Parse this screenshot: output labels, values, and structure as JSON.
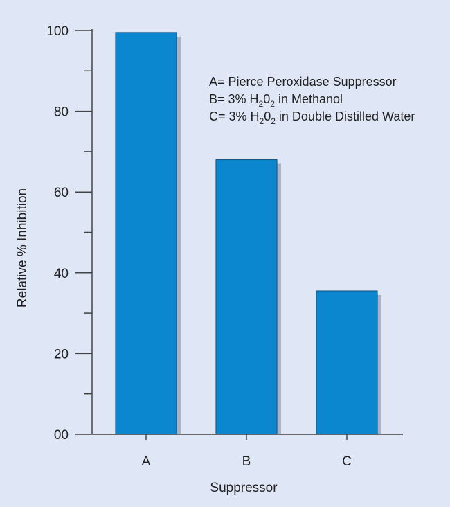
{
  "chart_data": {
    "type": "bar",
    "title": "",
    "xlabel": "Suppressor",
    "ylabel": "Relative % Inhibition",
    "categories": [
      "A",
      "B",
      "C"
    ],
    "values": [
      99.5,
      68,
      35.5
    ],
    "ylim": [
      0,
      100
    ],
    "y_ticks": [
      {
        "value": 0,
        "label": "00"
      },
      {
        "value": 20,
        "label": "20"
      },
      {
        "value": 40,
        "label": "40"
      },
      {
        "value": 60,
        "label": "60"
      },
      {
        "value": 80,
        "label": "80"
      },
      {
        "value": 100,
        "label": "100"
      }
    ],
    "y_minor_step": 10,
    "grid": false,
    "bar_color": "#0a87cf",
    "shadow_color": "#aab2c4",
    "background_color": "#dfe6f5",
    "legend_position": "top-right",
    "legend": [
      {
        "prefix": "A= Pierce Peroxidase Suppressor",
        "chem": false
      },
      {
        "prefix": "B= 3% H",
        "chem": true,
        "sub1": "2",
        "mid": "0",
        "sub2": "2",
        "suffix": " in Methanol"
      },
      {
        "prefix": "C= 3% H",
        "chem": true,
        "sub1": "2",
        "mid": "0",
        "sub2": "2",
        "suffix": " in Double Distilled Water"
      }
    ]
  }
}
